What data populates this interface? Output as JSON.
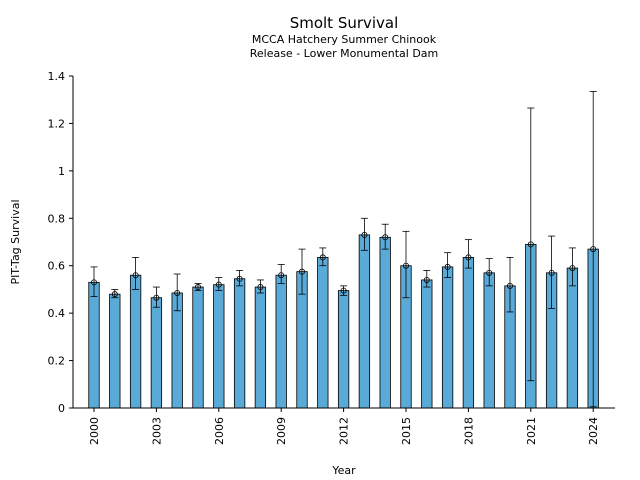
{
  "chart_data": {
    "type": "bar",
    "title": "Smolt Survival",
    "subtitle_line1": "MCCA Hatchery Summer Chinook",
    "subtitle_line2": "Release - Lower Monumental Dam",
    "xlabel": "Year",
    "ylabel": "PIT-Tag Survival",
    "ylim": [
      0,
      1.4
    ],
    "yticks": [
      "0",
      "0.2",
      "0.4",
      "0.6",
      "0.8",
      "1",
      "1.2",
      "1.4"
    ],
    "xticks": [
      "2000",
      "2003",
      "2006",
      "2009",
      "2012",
      "2015",
      "2018",
      "2021",
      "2024"
    ],
    "grid": false,
    "bar_color": "#5aaad8",
    "categories": [
      2000,
      2001,
      2002,
      2003,
      2004,
      2005,
      2006,
      2007,
      2008,
      2009,
      2010,
      2011,
      2012,
      2013,
      2014,
      2015,
      2016,
      2017,
      2018,
      2019,
      2020,
      2021,
      2022,
      2023,
      2024
    ],
    "values": [
      0.53,
      0.48,
      0.56,
      0.465,
      0.485,
      0.51,
      0.52,
      0.545,
      0.51,
      0.56,
      0.575,
      0.635,
      0.495,
      0.73,
      0.72,
      0.6,
      0.54,
      0.595,
      0.635,
      0.57,
      0.515,
      0.69,
      0.57,
      0.59,
      0.67
    ],
    "error_low": [
      0.47,
      0.465,
      0.5,
      0.425,
      0.41,
      0.495,
      0.495,
      0.515,
      0.485,
      0.525,
      0.48,
      0.6,
      0.475,
      0.665,
      0.67,
      0.465,
      0.51,
      0.55,
      0.59,
      0.515,
      0.405,
      0.115,
      0.42,
      0.515,
      0.005
    ],
    "error_high": [
      0.595,
      0.5,
      0.635,
      0.51,
      0.565,
      0.525,
      0.55,
      0.58,
      0.54,
      0.605,
      0.67,
      0.675,
      0.515,
      0.8,
      0.775,
      0.745,
      0.58,
      0.655,
      0.71,
      0.63,
      0.635,
      1.265,
      0.725,
      0.675,
      1.335
    ]
  }
}
